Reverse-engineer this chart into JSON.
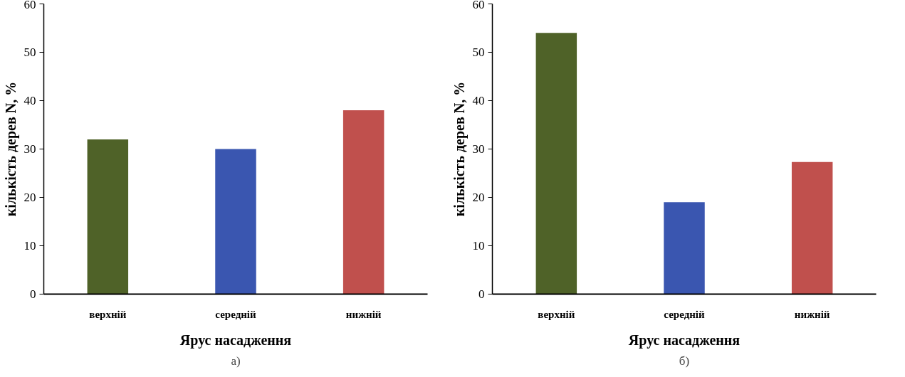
{
  "chart_data": [
    {
      "type": "bar",
      "categories": [
        "верхній",
        "середній",
        "нижній"
      ],
      "values": [
        32,
        30,
        38
      ],
      "colors": [
        "#4f6228",
        "#3a56b0",
        "#c0504d"
      ],
      "xlabel": "Ярус насадження",
      "ylabel": "кількість дерев N, %",
      "ylim": [
        0,
        60
      ],
      "yticks": [
        0,
        10,
        20,
        30,
        40,
        50,
        60
      ],
      "grid": false,
      "annotations": [
        "а)"
      ]
    },
    {
      "type": "bar",
      "categories": [
        "верхній",
        "середній",
        "нижній"
      ],
      "values": [
        54,
        19,
        27.3
      ],
      "colors": [
        "#4f6228",
        "#3a56b0",
        "#c0504d"
      ],
      "xlabel": "Ярус насадження",
      "ylabel": "кількість дерев N, %",
      "ylim": [
        0,
        60
      ],
      "yticks": [
        0,
        10,
        20,
        30,
        40,
        50,
        60
      ],
      "grid": false,
      "annotations": [
        "б)"
      ]
    }
  ]
}
